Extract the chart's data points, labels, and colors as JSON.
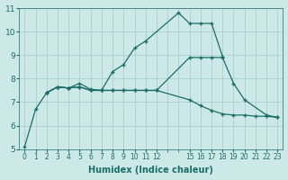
{
  "xlabel": "Humidex (Indice chaleur)",
  "background_color": "#cce9e7",
  "grid_color": "#aacfcc",
  "line_color": "#1a6e68",
  "xlim": [
    -0.5,
    23.5
  ],
  "ylim": [
    5,
    11
  ],
  "yticks": [
    5,
    6,
    7,
    8,
    9,
    10,
    11
  ],
  "line1_x": [
    0,
    1,
    2,
    3,
    4,
    5,
    6,
    7,
    8,
    9,
    10,
    11,
    14,
    15,
    16,
    17,
    18
  ],
  "line1_y": [
    5.1,
    6.7,
    7.4,
    7.65,
    7.6,
    7.8,
    7.55,
    7.5,
    8.3,
    8.6,
    9.3,
    9.6,
    10.8,
    10.35,
    10.35,
    10.35,
    8.95
  ],
  "line2_x": [
    2,
    3,
    4,
    5,
    6,
    7,
    8,
    9,
    10,
    11,
    12,
    15,
    16,
    17,
    18,
    19,
    20,
    22,
    23
  ],
  "line2_y": [
    7.4,
    7.65,
    7.6,
    7.65,
    7.5,
    7.5,
    7.5,
    7.5,
    7.5,
    7.5,
    7.5,
    8.9,
    8.9,
    8.9,
    8.9,
    7.8,
    7.1,
    6.45,
    6.35
  ],
  "line3_x": [
    2,
    3,
    4,
    5,
    6,
    7,
    8,
    9,
    10,
    11,
    12,
    15,
    16,
    17,
    18,
    19,
    20,
    21,
    22,
    23
  ],
  "line3_y": [
    7.4,
    7.65,
    7.6,
    7.65,
    7.5,
    7.5,
    7.5,
    7.5,
    7.5,
    7.5,
    7.5,
    7.1,
    6.85,
    6.65,
    6.5,
    6.45,
    6.45,
    6.4,
    6.4,
    6.35
  ],
  "xtick_positions": [
    0,
    1,
    2,
    3,
    4,
    5,
    6,
    7,
    8,
    9,
    10,
    11,
    12,
    15,
    16,
    17,
    18,
    19,
    20,
    21,
    22,
    23
  ],
  "xtick_labels": [
    "0",
    "1",
    "2",
    "3",
    "4",
    "5",
    "6",
    "7",
    "8",
    "9",
    "10",
    "11",
    "12",
    "15",
    "16",
    "17",
    "18",
    "19",
    "20",
    "21",
    "22",
    "23"
  ]
}
